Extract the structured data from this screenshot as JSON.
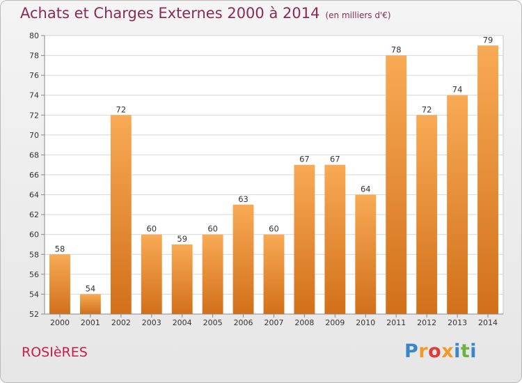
{
  "title": "Achats et Charges Externes 2000 à 2014",
  "subtitle": "(en milliers d'€)",
  "commune": "ROSIèRES",
  "logo": {
    "letters": [
      "P",
      "r",
      "o",
      "x",
      "i",
      "t",
      "i"
    ],
    "colors": [
      "#3b86c9",
      "#f29a27",
      "#e03a3a",
      "#f29a27",
      "#3b86c9",
      "#6db33f",
      "#3b86c9"
    ]
  },
  "colors": {
    "bar_top": "#f8aa55",
    "bar_bottom": "#d2701a",
    "title": "#8b2a52",
    "commune": "#c81e4b"
  },
  "chart_data": {
    "type": "bar",
    "categories": [
      "2000",
      "2001",
      "2002",
      "2003",
      "2004",
      "2005",
      "2006",
      "2007",
      "2008",
      "2009",
      "2010",
      "2011",
      "2012",
      "2013",
      "2014"
    ],
    "values": [
      58,
      54,
      72,
      60,
      59,
      60,
      63,
      60,
      67,
      67,
      64,
      78,
      72,
      74,
      79
    ],
    "ylim": [
      52,
      80
    ],
    "yticks": [
      52,
      54,
      56,
      58,
      60,
      62,
      64,
      66,
      68,
      70,
      72,
      74,
      76,
      78,
      80
    ],
    "grid": true,
    "data_labels": true
  }
}
